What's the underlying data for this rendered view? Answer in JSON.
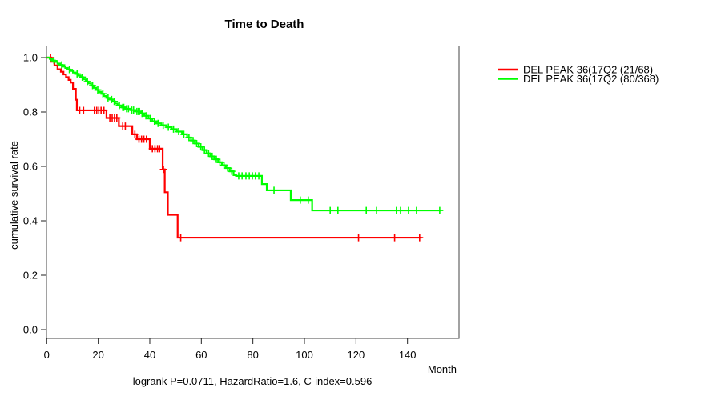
{
  "title": "Time to Death",
  "footer": "logrank P=0.0711, HazardRatio=1.6, C-index=0.596",
  "axes": {
    "x_label": "Month",
    "y_label": "cumulative survival rate",
    "x_ticks": [
      0,
      20,
      40,
      60,
      80,
      100,
      120,
      140
    ],
    "y_ticks": [
      "0.0",
      "0.2",
      "0.4",
      "0.6",
      "0.8",
      "1.0"
    ]
  },
  "legend": [
    {
      "label": "DEL PEAK 36(17Q2 (21/68)",
      "color": "#ff0000"
    },
    {
      "label": "DEL PEAK 36(17Q2 (80/368)",
      "color": "#00ff00"
    }
  ],
  "chart_data": {
    "type": "line",
    "subtype": "kaplan-meier-step",
    "title": "Time to Death",
    "xlabel": "Month",
    "ylabel": "cumulative survival rate",
    "xlim": [
      0,
      160
    ],
    "ylim": [
      0,
      1
    ],
    "grid": false,
    "legend_position": "right-top-outside",
    "annotation": "logrank P=0.0711, HazardRatio=1.6, C-index=0.596",
    "series": [
      {
        "name": "DEL PEAK 36(17Q2 (21/68)",
        "color": "#ff0000",
        "end": 145.5,
        "steps": [
          [
            0,
            1.0
          ],
          [
            1.8,
            0.985
          ],
          [
            3,
            0.971
          ],
          [
            4.2,
            0.957
          ],
          [
            5.5,
            0.948
          ],
          [
            6.5,
            0.938
          ],
          [
            7.5,
            0.928
          ],
          [
            8.5,
            0.918
          ],
          [
            9.3,
            0.908
          ],
          [
            10.2,
            0.885
          ],
          [
            11.3,
            0.845
          ],
          [
            11.7,
            0.806
          ],
          [
            23.2,
            0.778
          ],
          [
            28,
            0.748
          ],
          [
            33.2,
            0.718
          ],
          [
            35,
            0.7
          ],
          [
            40,
            0.665
          ],
          [
            45,
            0.589
          ],
          [
            45.8,
            0.505
          ],
          [
            47,
            0.422
          ],
          [
            50.8,
            0.338
          ]
        ],
        "censors": [
          [
            1.5,
            1.0
          ],
          [
            12.8,
            0.806
          ],
          [
            14.3,
            0.806
          ],
          [
            18.5,
            0.806
          ],
          [
            19.4,
            0.806
          ],
          [
            20.2,
            0.806
          ],
          [
            21.1,
            0.806
          ],
          [
            22.2,
            0.806
          ],
          [
            24.5,
            0.778
          ],
          [
            25.4,
            0.778
          ],
          [
            26.3,
            0.778
          ],
          [
            27.2,
            0.778
          ],
          [
            29.5,
            0.748
          ],
          [
            30.5,
            0.748
          ],
          [
            34.2,
            0.718
          ],
          [
            35.8,
            0.7
          ],
          [
            36.8,
            0.7
          ],
          [
            37.7,
            0.7
          ],
          [
            38.7,
            0.7
          ],
          [
            41,
            0.665
          ],
          [
            42,
            0.665
          ],
          [
            43,
            0.665
          ],
          [
            43.8,
            0.665
          ],
          [
            45.3,
            0.589
          ],
          [
            52,
            0.338
          ],
          [
            121,
            0.338
          ],
          [
            135,
            0.338
          ],
          [
            144.7,
            0.338
          ]
        ]
      },
      {
        "name": "DEL PEAK 36(17Q2 (80/368)",
        "color": "#00ff00",
        "end": 152.8,
        "steps": [
          [
            0,
            1.0
          ],
          [
            1.2,
            0.995
          ],
          [
            2.2,
            0.989
          ],
          [
            3.2,
            0.984
          ],
          [
            4.2,
            0.978
          ],
          [
            5.2,
            0.973
          ],
          [
            6.2,
            0.967
          ],
          [
            7.2,
            0.962
          ],
          [
            8.2,
            0.956
          ],
          [
            9.2,
            0.951
          ],
          [
            10.2,
            0.945
          ],
          [
            11.2,
            0.94
          ],
          [
            12.2,
            0.934
          ],
          [
            13.2,
            0.928
          ],
          [
            14.2,
            0.92
          ],
          [
            15.2,
            0.912
          ],
          [
            16.2,
            0.905
          ],
          [
            17.2,
            0.897
          ],
          [
            18.2,
            0.889
          ],
          [
            19.2,
            0.881
          ],
          [
            20.2,
            0.874
          ],
          [
            21.2,
            0.867
          ],
          [
            22.2,
            0.859
          ],
          [
            23.2,
            0.852
          ],
          [
            24.5,
            0.846
          ],
          [
            25.5,
            0.839
          ],
          [
            26.5,
            0.831
          ],
          [
            27.5,
            0.824
          ],
          [
            29,
            0.817
          ],
          [
            30.5,
            0.812
          ],
          [
            32.5,
            0.807
          ],
          [
            34.5,
            0.802
          ],
          [
            36.5,
            0.795
          ],
          [
            37.8,
            0.786
          ],
          [
            39.5,
            0.776
          ],
          [
            41,
            0.766
          ],
          [
            42.5,
            0.758
          ],
          [
            44.5,
            0.751
          ],
          [
            46.5,
            0.744
          ],
          [
            48.5,
            0.737
          ],
          [
            50.5,
            0.728
          ],
          [
            52.5,
            0.718
          ],
          [
            54.5,
            0.706
          ],
          [
            56,
            0.695
          ],
          [
            57.5,
            0.684
          ],
          [
            59,
            0.672
          ],
          [
            60.5,
            0.66
          ],
          [
            62,
            0.648
          ],
          [
            63.5,
            0.637
          ],
          [
            65,
            0.626
          ],
          [
            66.5,
            0.615
          ],
          [
            68,
            0.604
          ],
          [
            69.5,
            0.594
          ],
          [
            71,
            0.582
          ],
          [
            72.5,
            0.568
          ],
          [
            73.5,
            0.565
          ],
          [
            83.5,
            0.535
          ],
          [
            85.4,
            0.512
          ],
          [
            94.7,
            0.476
          ],
          [
            103,
            0.438
          ]
        ],
        "censors": [
          [
            2.8,
            0.989
          ],
          [
            5.8,
            0.973
          ],
          [
            8.8,
            0.956
          ],
          [
            11.8,
            0.94
          ],
          [
            13.8,
            0.928
          ],
          [
            15.8,
            0.912
          ],
          [
            17.8,
            0.897
          ],
          [
            19.8,
            0.881
          ],
          [
            21.8,
            0.867
          ],
          [
            23.8,
            0.852
          ],
          [
            25.2,
            0.846
          ],
          [
            26.2,
            0.839
          ],
          [
            28.2,
            0.824
          ],
          [
            29.5,
            0.817
          ],
          [
            29.9,
            0.817
          ],
          [
            31,
            0.812
          ],
          [
            31.7,
            0.812
          ],
          [
            33,
            0.807
          ],
          [
            33.7,
            0.807
          ],
          [
            35,
            0.802
          ],
          [
            35.6,
            0.802
          ],
          [
            36,
            0.802
          ],
          [
            37,
            0.795
          ],
          [
            38.5,
            0.786
          ],
          [
            40.2,
            0.776
          ],
          [
            41.8,
            0.766
          ],
          [
            43.2,
            0.758
          ],
          [
            45.2,
            0.751
          ],
          [
            47.2,
            0.744
          ],
          [
            49.2,
            0.737
          ],
          [
            51.2,
            0.728
          ],
          [
            53.2,
            0.718
          ],
          [
            55.2,
            0.706
          ],
          [
            56.8,
            0.695
          ],
          [
            58.2,
            0.684
          ],
          [
            59.8,
            0.672
          ],
          [
            61.2,
            0.66
          ],
          [
            62.8,
            0.648
          ],
          [
            64.2,
            0.637
          ],
          [
            65.8,
            0.626
          ],
          [
            67.2,
            0.615
          ],
          [
            68.8,
            0.604
          ],
          [
            70.2,
            0.594
          ],
          [
            71.8,
            0.582
          ],
          [
            74.5,
            0.565
          ],
          [
            75.8,
            0.565
          ],
          [
            77.3,
            0.565
          ],
          [
            78.6,
            0.565
          ],
          [
            79.8,
            0.565
          ],
          [
            81,
            0.565
          ],
          [
            82.3,
            0.565
          ],
          [
            88.2,
            0.512
          ],
          [
            98.4,
            0.476
          ],
          [
            101.5,
            0.476
          ],
          [
            110,
            0.438
          ],
          [
            113,
            0.438
          ],
          [
            124,
            0.438
          ],
          [
            128,
            0.438
          ],
          [
            135.7,
            0.438
          ],
          [
            137.3,
            0.438
          ],
          [
            140.4,
            0.438
          ],
          [
            143.5,
            0.438
          ],
          [
            152.5,
            0.438
          ]
        ]
      }
    ]
  }
}
